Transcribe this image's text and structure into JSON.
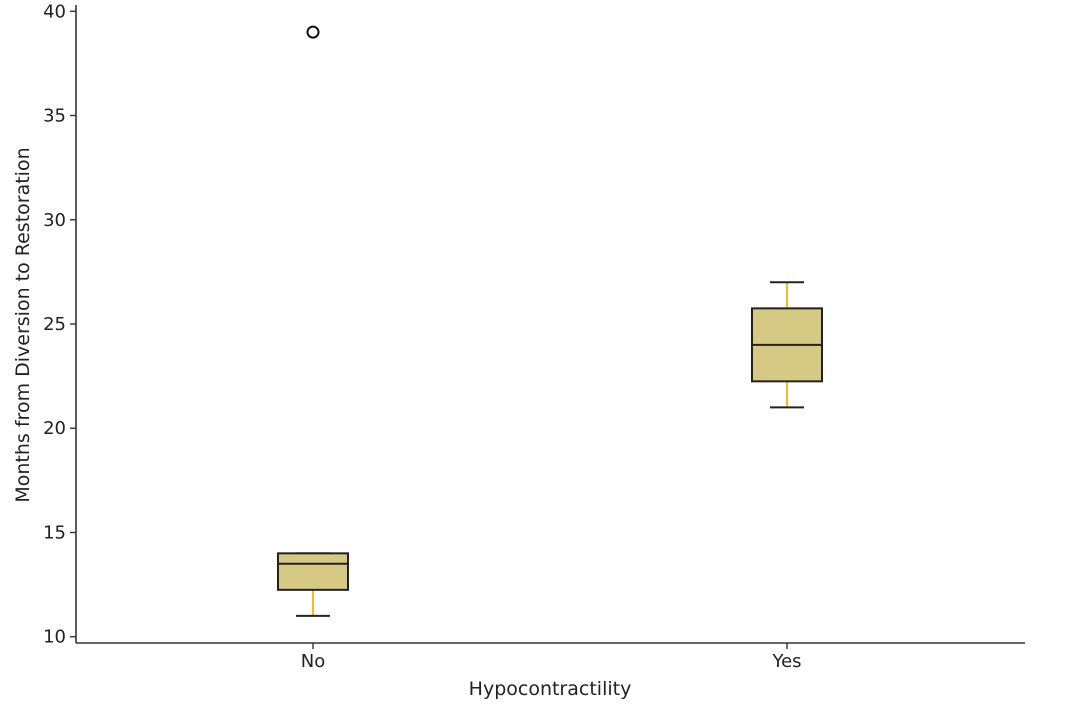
{
  "chart_data": {
    "type": "box",
    "xlabel": "Hypocontractility",
    "ylabel": "Months from Diversion to Restoration",
    "categories": [
      "No",
      "Yes"
    ],
    "ylim": [
      9.7,
      40.3
    ],
    "yticks": [
      10,
      15,
      20,
      25,
      30,
      35,
      40
    ],
    "grid": false,
    "boxes": [
      {
        "category": "No",
        "whisker_low": 11,
        "q1": 12.25,
        "median": 13.5,
        "q3": 14,
        "whisker_high": 14,
        "outliers": [
          39
        ]
      },
      {
        "category": "Yes",
        "whisker_low": 21,
        "q1": 22.25,
        "median": 24,
        "q3": 25.75,
        "whisker_high": 27,
        "outliers": []
      }
    ],
    "colors": {
      "box_fill": "#d5c983",
      "box_edge": "#222222",
      "whisker": "#f0b400",
      "median": "#222222",
      "axis": "#333333"
    }
  }
}
